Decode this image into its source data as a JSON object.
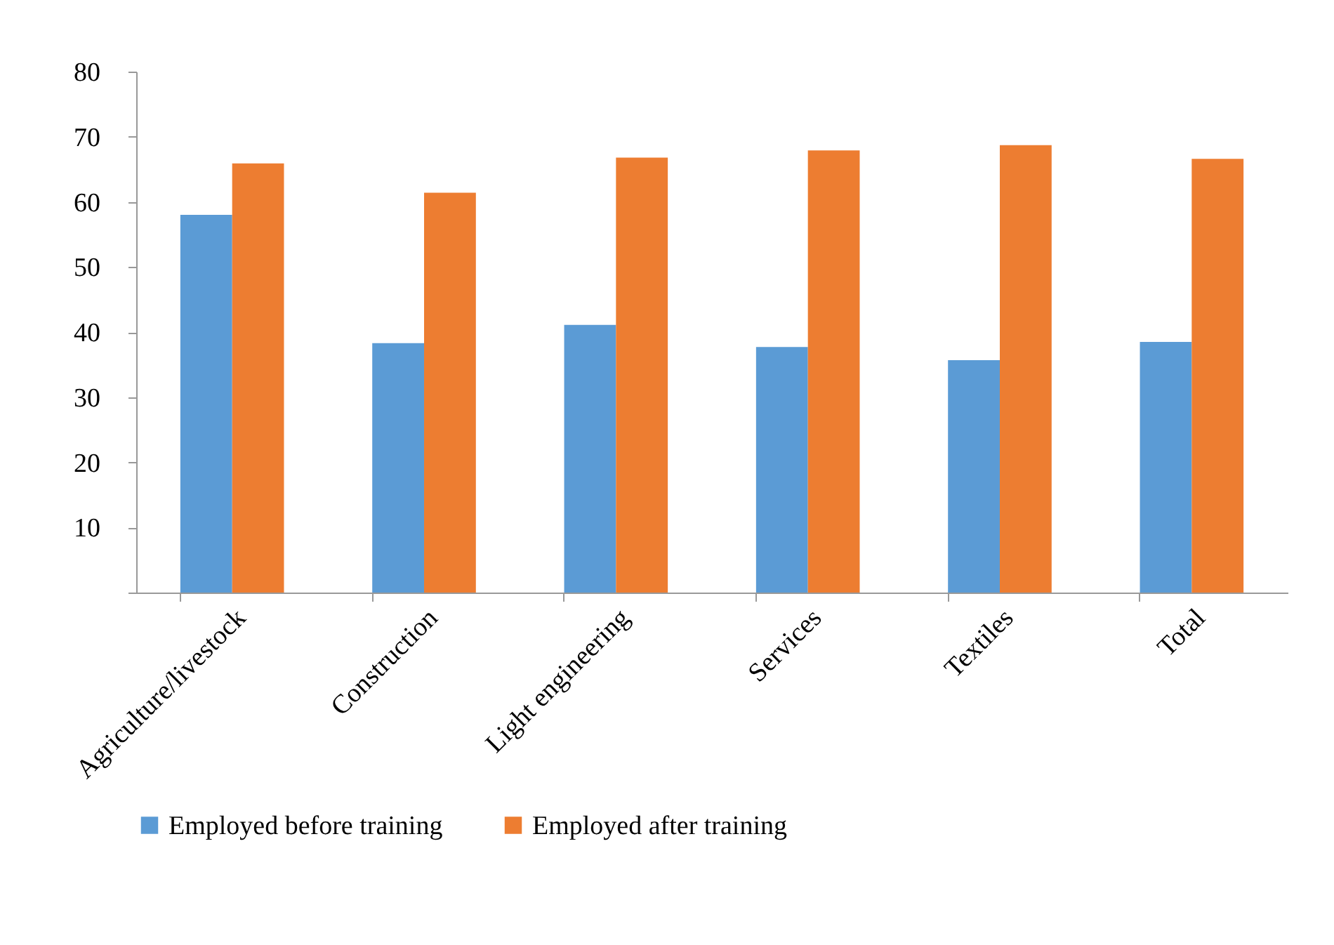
{
  "chart_data": {
    "type": "bar",
    "categories": [
      "Agriculture/livestock",
      "Construction",
      "Light engineering",
      "Services",
      "Textiles",
      "Total"
    ],
    "series": [
      {
        "name": "Employed before training",
        "color": "#5b9bd5",
        "values": [
          58.0,
          38.3,
          41.1,
          37.7,
          35.7,
          38.5
        ]
      },
      {
        "name": "Employed after training",
        "color": "#ed7d31",
        "values": [
          65.9,
          61.4,
          66.8,
          67.9,
          68.7,
          66.6
        ]
      }
    ],
    "ylim": [
      0,
      80
    ],
    "yticks": [
      {
        "value": 0,
        "label": null
      },
      10,
      20,
      30,
      40,
      50,
      60,
      70,
      80
    ],
    "grid": false,
    "legend": "bottom"
  }
}
